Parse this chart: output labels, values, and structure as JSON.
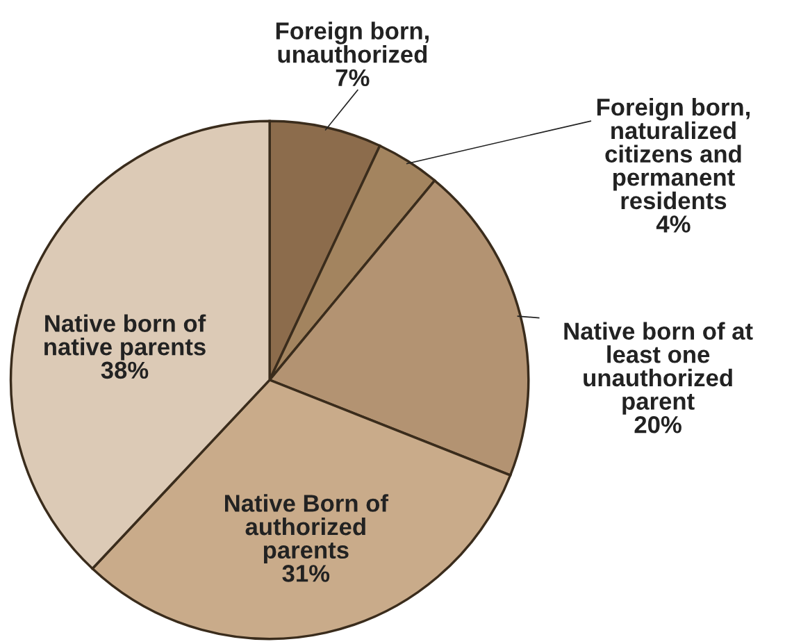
{
  "chart_data": {
    "type": "pie",
    "categories": [
      "Foreign born,\nunauthorized",
      "Foreign born,\nnaturalized\ncitizens and\npermanent\nresidents",
      "Native born of at\nleast one\nunauthorized\nparent",
      "Native Born of\nauthorized\nparents",
      "Native born of\nnative parents"
    ],
    "values": [
      7,
      4,
      20,
      31,
      38
    ],
    "value_labels": [
      "7%",
      "4%",
      "20%",
      "31%",
      "38%"
    ],
    "colors": [
      "#8c6c4c",
      "#a3845f",
      "#b39372",
      "#c9ab8a",
      "#dccab6"
    ]
  }
}
